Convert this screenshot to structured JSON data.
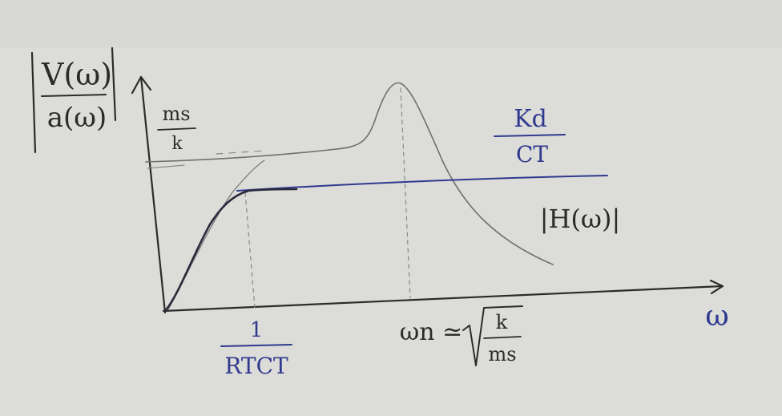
{
  "y_axis_label": {
    "numerator": "V(ω)",
    "denominator": "a(ω)"
  },
  "y_level_label": {
    "numerator": "ms",
    "denominator": "k"
  },
  "x_axis_label": "ω",
  "cutoff_label": {
    "numerator": "1",
    "denominator": "RTCT"
  },
  "resonance_label": {
    "prefix": "ωn ≃",
    "numerator": "k",
    "denominator": "ms"
  },
  "gain_label": {
    "numerator": "Kd",
    "denominator": "CT"
  },
  "transfer_label": "|H(ω)|",
  "colors": {
    "black_ink": "#2b2b2b",
    "blue_ink": "#2f3a8f",
    "board": "#dcdcd8"
  }
}
